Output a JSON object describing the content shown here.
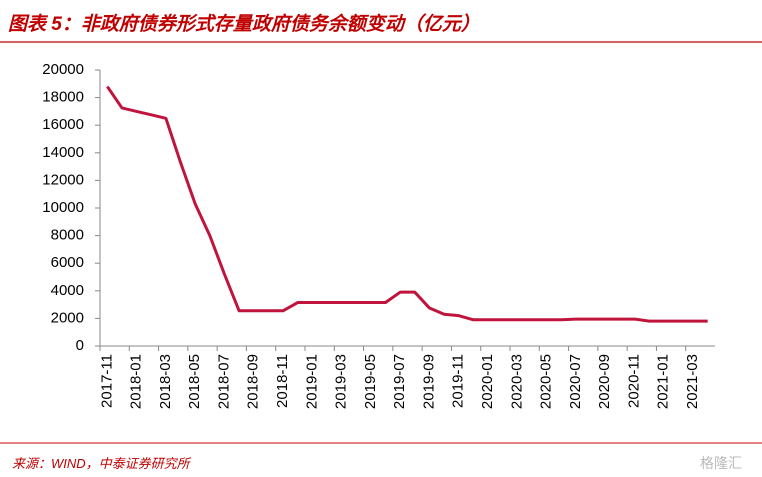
{
  "chart_data": {
    "type": "line",
    "title": "图表 5：非政府债券形式存量政府债务余额变动（亿元）",
    "source": "来源：WIND，中泰证券研究所",
    "watermark": "格隆汇",
    "categories": [
      "2017-11",
      null,
      "2018-01",
      null,
      "2018-03",
      null,
      "2018-05",
      null,
      "2018-07",
      null,
      "2018-09",
      null,
      "2018-11",
      null,
      "2019-01",
      null,
      "2019-03",
      null,
      "2019-05",
      null,
      "2019-07",
      null,
      "2019-09",
      null,
      "2019-11",
      null,
      "2020-01",
      null,
      "2020-03",
      null,
      "2020-05",
      null,
      "2020-07",
      null,
      "2020-09",
      null,
      "2020-11",
      null,
      "2021-01",
      null,
      "2021-03",
      null
    ],
    "series": [
      {
        "color": "#c0143c",
        "values": [
          18800,
          17250,
          17000,
          16750,
          16500,
          13300,
          10300,
          8000,
          5200,
          2550,
          2550,
          2550,
          2550,
          3150,
          3150,
          3150,
          3150,
          3150,
          3150,
          3150,
          3900,
          3900,
          2750,
          2300,
          2200,
          1900,
          1900,
          1900,
          1900,
          1900,
          1900,
          1900,
          1950,
          1950,
          1950,
          1950,
          1950,
          1800,
          1800,
          1800,
          1800,
          1800
        ]
      }
    ],
    "ylim": [
      0,
      20000
    ],
    "yticks": [
      0,
      2000,
      4000,
      6000,
      8000,
      10000,
      12000,
      14000,
      16000,
      18000,
      20000
    ]
  }
}
